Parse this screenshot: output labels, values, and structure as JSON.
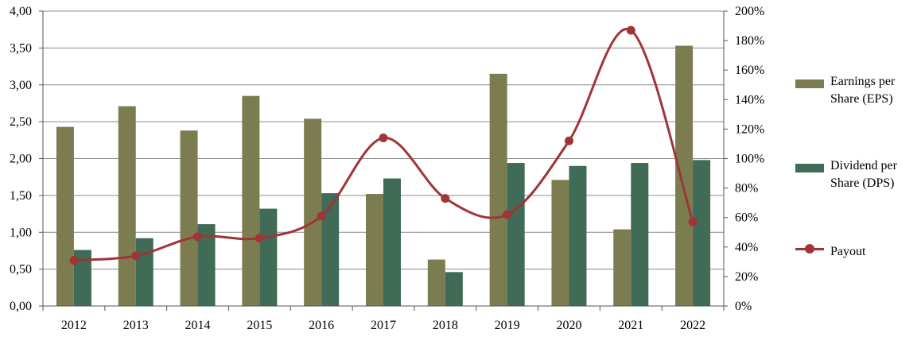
{
  "chart_data": {
    "type": "bar",
    "categories": [
      "2012",
      "2013",
      "2014",
      "2015",
      "2016",
      "2017",
      "2018",
      "2019",
      "2020",
      "2021",
      "2022"
    ],
    "series": [
      {
        "name": "Earnings per Share (EPS)",
        "type": "bar",
        "axis": "left",
        "values": [
          2.43,
          2.71,
          2.38,
          2.85,
          2.54,
          1.52,
          0.63,
          3.15,
          1.71,
          1.04,
          3.53
        ]
      },
      {
        "name": "Dividend per Share (DPS)",
        "type": "bar",
        "axis": "left",
        "values": [
          0.76,
          0.92,
          1.11,
          1.32,
          1.53,
          1.73,
          0.46,
          1.94,
          1.9,
          1.94,
          1.98
        ]
      },
      {
        "name": "Payout",
        "type": "line",
        "axis": "right",
        "values": [
          0.31,
          0.34,
          0.47,
          0.46,
          0.61,
          1.14,
          0.73,
          0.62,
          1.12,
          1.87,
          0.57
        ]
      }
    ],
    "y_left": {
      "ylim": [
        0,
        4
      ],
      "ticks": [
        "0,00",
        "0,50",
        "1,00",
        "1,50",
        "2,00",
        "2,50",
        "3,00",
        "3,50",
        "4,00"
      ]
    },
    "y_right": {
      "ylim": [
        0,
        2
      ],
      "ticks": [
        "0%",
        "20%",
        "40%",
        "60%",
        "80%",
        "100%",
        "120%",
        "140%",
        "160%",
        "180%",
        "200%"
      ]
    },
    "grid": true,
    "legend_position": "right",
    "colors": {
      "eps": "#7b7d50",
      "dps": "#3f6b57",
      "payout": "#a03436",
      "grid": "#8c8c8c"
    }
  },
  "legend": {
    "eps": [
      "Earnings per",
      "Share (EPS)"
    ],
    "dps": [
      "Dividend per",
      "Share (DPS)"
    ],
    "payout": "Payout"
  }
}
